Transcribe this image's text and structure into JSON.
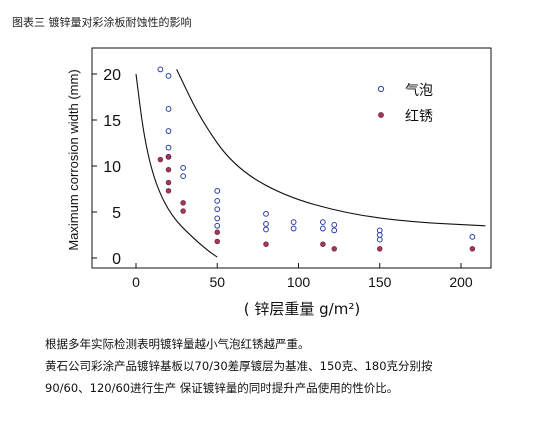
{
  "figure": {
    "caption": "图表三   镀锌量对彩涂板耐蚀性的影响"
  },
  "chart_data": {
    "type": "scatter",
    "title": "",
    "xlabel": "( 锌层重量 g/m²)",
    "ylabel": "Maximum corrosion width (mm)",
    "xlim": [
      -5,
      215
    ],
    "ylim": [
      -1,
      21
    ],
    "x_ticks": [
      0,
      50,
      100,
      150,
      200
    ],
    "x_tick_labels": [
      "0",
      "50",
      "100",
      "150",
      "200"
    ],
    "y_ticks": [
      0,
      5,
      10,
      15,
      20
    ],
    "y_tick_labels": [
      "0",
      "5",
      "10",
      "15",
      "20"
    ],
    "grid": false,
    "legend_position": "top-right",
    "series": [
      {
        "name": "气泡",
        "marker": "open-circle",
        "color": "#2b3fa8",
        "points": [
          [
            15,
            20.5
          ],
          [
            20,
            19.8
          ],
          [
            20,
            16.2
          ],
          [
            20,
            13.8
          ],
          [
            20,
            12.0
          ],
          [
            20,
            11.0
          ],
          [
            29,
            9.8
          ],
          [
            29,
            8.9
          ],
          [
            50,
            7.3
          ],
          [
            50,
            6.2
          ],
          [
            50,
            5.3
          ],
          [
            50,
            4.3
          ],
          [
            50,
            3.5
          ],
          [
            80,
            4.8
          ],
          [
            80,
            3.7
          ],
          [
            80,
            3.1
          ],
          [
            97,
            3.9
          ],
          [
            97,
            3.2
          ],
          [
            115,
            3.9
          ],
          [
            115,
            3.2
          ],
          [
            122,
            3.6
          ],
          [
            122,
            3.0
          ],
          [
            150,
            3.0
          ],
          [
            150,
            2.5
          ],
          [
            150,
            2.0
          ],
          [
            207,
            2.3
          ]
        ]
      },
      {
        "name": "红锈",
        "marker": "filled-circle",
        "color": "#a5375a",
        "points": [
          [
            15,
            10.7
          ],
          [
            20,
            11.0
          ],
          [
            20,
            9.6
          ],
          [
            20,
            8.2
          ],
          [
            20,
            7.3
          ],
          [
            29,
            6.0
          ],
          [
            29,
            5.1
          ],
          [
            50,
            2.8
          ],
          [
            50,
            1.8
          ],
          [
            80,
            1.5
          ],
          [
            115,
            1.5
          ],
          [
            122,
            1.0
          ],
          [
            150,
            1.0
          ],
          [
            207,
            1.0
          ]
        ]
      }
    ],
    "envelopes": [
      {
        "kind": "upper",
        "color": "#111111",
        "points": [
          [
            25,
            20.5
          ],
          [
            40,
            15.0
          ],
          [
            60,
            10.0
          ],
          [
            90,
            6.8
          ],
          [
            130,
            4.8
          ],
          [
            170,
            3.9
          ],
          [
            215,
            3.5
          ]
        ]
      },
      {
        "kind": "lower",
        "color": "#111111",
        "points": [
          [
            0,
            20.0
          ],
          [
            5,
            13.0
          ],
          [
            12,
            8.0
          ],
          [
            22,
            4.5
          ],
          [
            35,
            2.2
          ],
          [
            45,
            0.7
          ],
          [
            50,
            0.1
          ]
        ]
      }
    ]
  },
  "notes": {
    "line1": "根据多年实际检测表明镀锌量越小气泡红锈越严重。",
    "line2": "黄石公司彩涂产品镀锌基板以70/30差厚镀层为基准、150克、180克分别按",
    "line3": "90/60、120/60进行生产    保证镀锌量的同时提升产品使用的性价比。"
  }
}
